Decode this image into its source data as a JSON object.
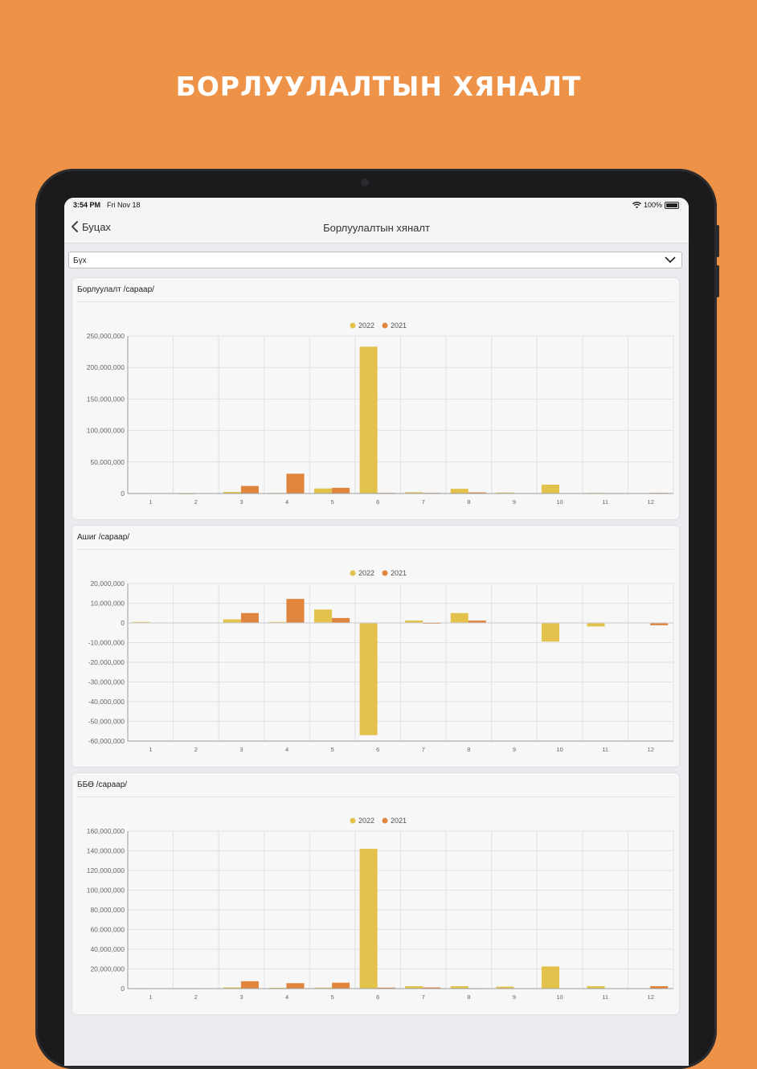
{
  "promo": {
    "title": "БОРЛУУЛАЛТЫН ХЯНАЛТ"
  },
  "status_bar": {
    "time": "3:54 PM",
    "date": "Fri Nov 18",
    "battery": "100%"
  },
  "nav": {
    "back_label": "Буцах",
    "title": "Борлуулалтын хяналт"
  },
  "filter": {
    "selected": "Бүх"
  },
  "colors": {
    "series_2022": "#E2C24A",
    "series_2021": "#E0853D",
    "background": "#EE9248"
  },
  "chart_data": [
    {
      "type": "bar",
      "title": "Борлуулалт /сараар/",
      "categories": [
        "1",
        "2",
        "3",
        "4",
        "5",
        "6",
        "7",
        "8",
        "9",
        "10",
        "11",
        "12"
      ],
      "series": [
        {
          "name": "2022",
          "values": [
            800000,
            200000,
            2500000,
            900000,
            8000000,
            233000000,
            2000000,
            7500000,
            1500000,
            14000000,
            1000000,
            0
          ]
        },
        {
          "name": "2021",
          "values": [
            0,
            0,
            12000000,
            31500000,
            9000000,
            1000000,
            1000000,
            1800000,
            0,
            0,
            500000,
            1000000
          ]
        }
      ],
      "ylim": [
        0,
        250000000
      ],
      "yticks": [
        "0",
        "50,000,000",
        "100,000,000",
        "150,000,000",
        "200,000,000",
        "250,000,000"
      ],
      "ytick_values": [
        0,
        50000000,
        100000000,
        150000000,
        200000000,
        250000000
      ],
      "legend": "top-center",
      "grid": true
    },
    {
      "type": "bar",
      "title": "Ашиг /сараар/",
      "categories": [
        "1",
        "2",
        "3",
        "4",
        "5",
        "6",
        "7",
        "8",
        "9",
        "10",
        "11",
        "12"
      ],
      "series": [
        {
          "name": "2022",
          "values": [
            500000,
            0,
            1800000,
            500000,
            6800000,
            -57000000,
            1200000,
            5000000,
            0,
            -9500000,
            -1800000,
            0
          ]
        },
        {
          "name": "2021",
          "values": [
            0,
            0,
            5000000,
            12200000,
            2500000,
            0,
            -300000,
            1200000,
            0,
            0,
            0,
            -1200000
          ]
        }
      ],
      "ylim": [
        -60000000,
        20000000
      ],
      "yticks": [
        "-60,000,000",
        "-50,000,000",
        "-40,000,000",
        "-30,000,000",
        "-20,000,000",
        "-10,000,000",
        "0",
        "10,000,000",
        "20,000,000"
      ],
      "ytick_values": [
        -60000000,
        -50000000,
        -40000000,
        -30000000,
        -20000000,
        -10000000,
        0,
        10000000,
        20000000
      ],
      "legend": "top-center",
      "grid": true
    },
    {
      "type": "bar",
      "title": "ББӨ /сараар/",
      "categories": [
        "1",
        "2",
        "3",
        "4",
        "5",
        "6",
        "7",
        "8",
        "9",
        "10",
        "11",
        "12"
      ],
      "series": [
        {
          "name": "2022",
          "values": [
            500000,
            300000,
            1200000,
            800000,
            1000000,
            142000000,
            2500000,
            2500000,
            2000000,
            22500000,
            2500000,
            0
          ]
        },
        {
          "name": "2021",
          "values": [
            0,
            0,
            7500000,
            5500000,
            6000000,
            1000000,
            1200000,
            300000,
            0,
            0,
            0,
            2500000
          ]
        }
      ],
      "ylim": [
        0,
        160000000
      ],
      "yticks": [
        "0",
        "20,000,000",
        "40,000,000",
        "60,000,000",
        "80,000,000",
        "100,000,000",
        "120,000,000",
        "140,000,000",
        "160,000,000"
      ],
      "ytick_values": [
        0,
        20000000,
        40000000,
        60000000,
        80000000,
        100000000,
        120000000,
        140000000,
        160000000
      ],
      "legend": "top-center",
      "grid": true
    }
  ]
}
